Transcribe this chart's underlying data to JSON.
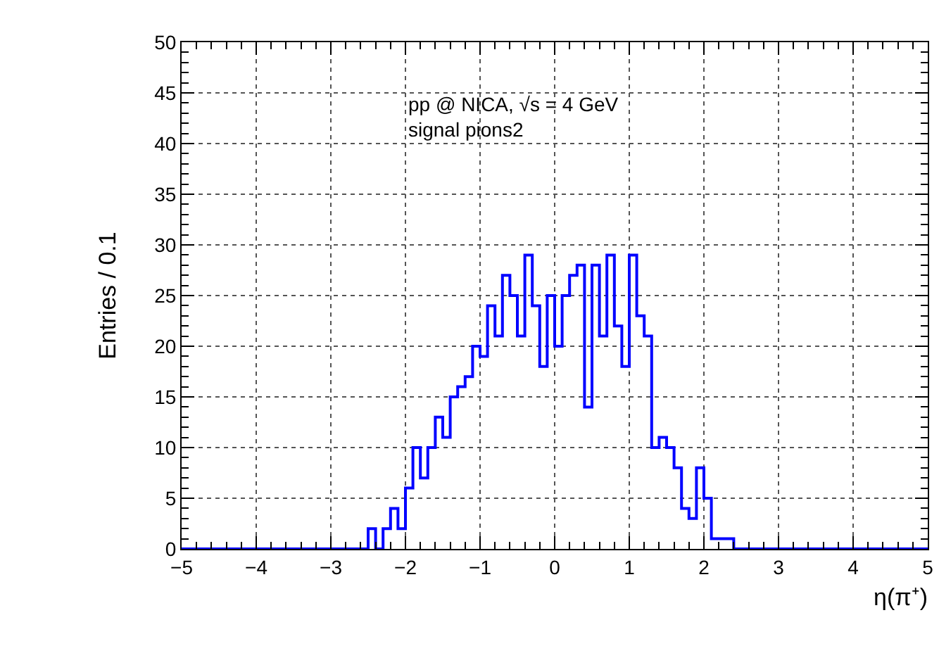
{
  "chart_data": {
    "type": "histogram",
    "xlabel": "η(π⁺)",
    "ylabel": "Entries / 0.1",
    "annotations": [
      "pp @ NICA, √s = 4 GeV",
      "signal pions2"
    ],
    "bins": [
      -5,
      -4.9,
      -4.8,
      -4.7,
      -4.6,
      -4.5,
      -4.4,
      -4.3,
      -4.2,
      -4.1,
      -4,
      -3.9,
      -3.8,
      -3.7,
      -3.6,
      -3.5,
      -3.4,
      -3.3,
      -3.2,
      -3.1,
      -3,
      -2.9,
      -2.8,
      -2.7,
      -2.6,
      -2.5,
      -2.4,
      -2.3,
      -2.2,
      -2.1,
      -2,
      -1.9,
      -1.8,
      -1.7,
      -1.6,
      -1.5,
      -1.4,
      -1.3,
      -1.2,
      -1.1,
      -1,
      -0.9,
      -0.8,
      -0.7,
      -0.6,
      -0.5,
      -0.4,
      -0.3,
      -0.2,
      -0.1,
      0,
      0.1,
      0.2,
      0.3,
      0.4,
      0.5,
      0.6,
      0.7,
      0.8,
      0.9,
      1,
      1.1,
      1.2,
      1.3,
      1.4,
      1.5,
      1.6,
      1.7,
      1.8,
      1.9,
      2,
      2.1,
      2.2,
      2.3,
      2.4,
      2.5,
      2.6,
      2.7,
      2.8,
      2.9,
      3,
      3.1,
      3.2,
      3.3,
      3.4,
      3.5,
      3.6,
      3.7,
      3.8,
      3.9,
      4,
      4.1,
      4.2,
      4.3,
      4.4,
      4.5,
      4.6,
      4.7,
      4.8,
      4.9,
      5
    ],
    "values": [
      0,
      0,
      0,
      0,
      0,
      0,
      0,
      0,
      0,
      0,
      0,
      0,
      0,
      0,
      0,
      0,
      0,
      0,
      0,
      0,
      0,
      0,
      0,
      0,
      0,
      2,
      0,
      2,
      4,
      2,
      6,
      10,
      7,
      10,
      13,
      11,
      15,
      16,
      17,
      20,
      19,
      24,
      21,
      27,
      25,
      21,
      29,
      24,
      18,
      25,
      20,
      25,
      27,
      28,
      14,
      28,
      21,
      29,
      22,
      18,
      29,
      23,
      21,
      10,
      11,
      10,
      8,
      4,
      3,
      8,
      5,
      1,
      1,
      1,
      0,
      0,
      0,
      0,
      0,
      0,
      0,
      0,
      0,
      0,
      0,
      0,
      0,
      0,
      0,
      0,
      0,
      0,
      0,
      0,
      0,
      0,
      0,
      0,
      0,
      0
    ],
    "color": "#0000ff",
    "xlim": [
      -5,
      5
    ],
    "xticks": [
      {
        "value": -5,
        "label": "−5"
      },
      {
        "value": -4,
        "label": "−4"
      },
      {
        "value": -3,
        "label": "−3"
      },
      {
        "value": -2,
        "label": "−2"
      },
      {
        "value": -1,
        "label": "−1"
      },
      0,
      1,
      2,
      3,
      4,
      5
    ],
    "ylim": [
      0,
      50
    ],
    "yticks": [
      0,
      5,
      10,
      15,
      20,
      25,
      30,
      35,
      40,
      45,
      50
    ],
    "grid": true,
    "line_style": "solid",
    "marker": "none"
  }
}
